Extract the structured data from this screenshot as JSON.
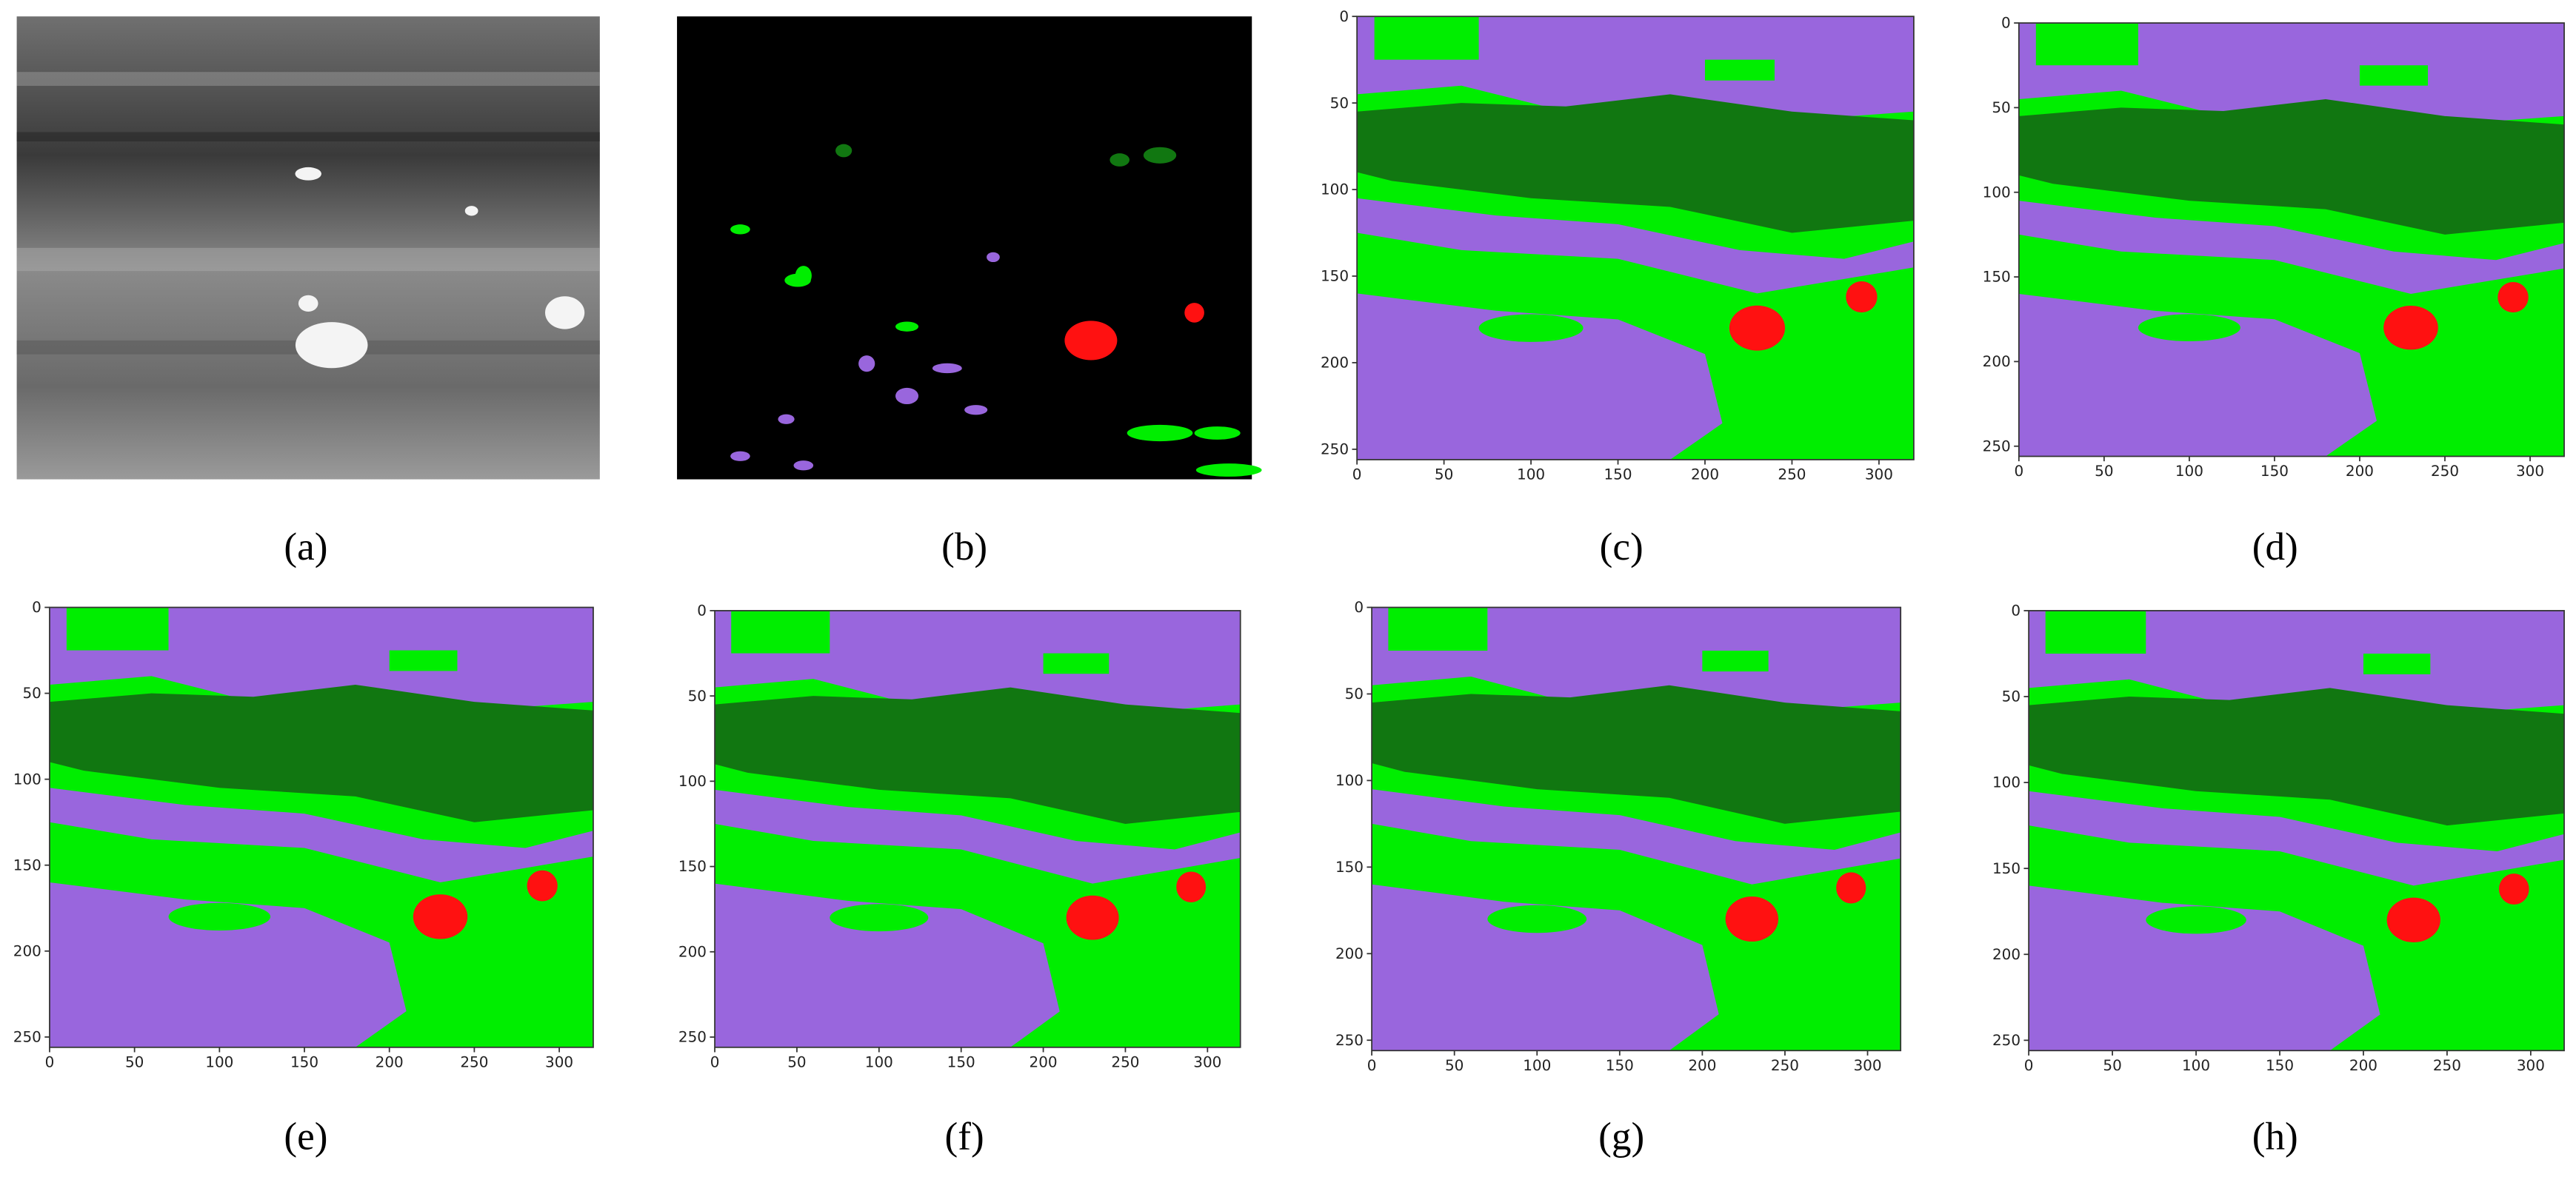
{
  "panels": [
    {
      "label": "(a)"
    },
    {
      "label": "(b)"
    },
    {
      "label": "(c)",
      "xlim": [
        0,
        320
      ],
      "ylim": [
        0,
        256
      ],
      "xticks": [
        0,
        50,
        100,
        150,
        200,
        250,
        300
      ],
      "yticks": [
        0,
        50,
        100,
        150,
        200,
        250
      ]
    },
    {
      "label": "(d)",
      "xlim": [
        0,
        320
      ],
      "ylim": [
        0,
        256
      ],
      "xticks": [
        0,
        50,
        100,
        150,
        200,
        250,
        300
      ],
      "yticks": [
        0,
        50,
        100,
        150,
        200,
        250
      ]
    },
    {
      "label": "(e)",
      "xlim": [
        0,
        320
      ],
      "ylim": [
        0,
        256
      ],
      "xticks": [
        0,
        50,
        100,
        150,
        200,
        250,
        300
      ],
      "yticks": [
        0,
        50,
        100,
        150,
        200,
        250
      ]
    },
    {
      "label": "(f)",
      "xlim": [
        0,
        320
      ],
      "ylim": [
        0,
        256
      ],
      "xticks": [
        0,
        50,
        100,
        150,
        200,
        250,
        300
      ],
      "yticks": [
        0,
        50,
        100,
        150,
        200,
        250
      ]
    },
    {
      "label": "(g)",
      "xlim": [
        0,
        320
      ],
      "ylim": [
        0,
        256
      ],
      "xticks": [
        0,
        50,
        100,
        150,
        200,
        250,
        300
      ],
      "yticks": [
        0,
        50,
        100,
        150,
        200,
        250
      ]
    },
    {
      "label": "(h)",
      "xlim": [
        0,
        320
      ],
      "ylim": [
        0,
        256
      ],
      "xticks": [
        0,
        50,
        100,
        150,
        200,
        250,
        300
      ],
      "yticks": [
        0,
        50,
        100,
        150,
        200,
        250
      ]
    }
  ]
}
